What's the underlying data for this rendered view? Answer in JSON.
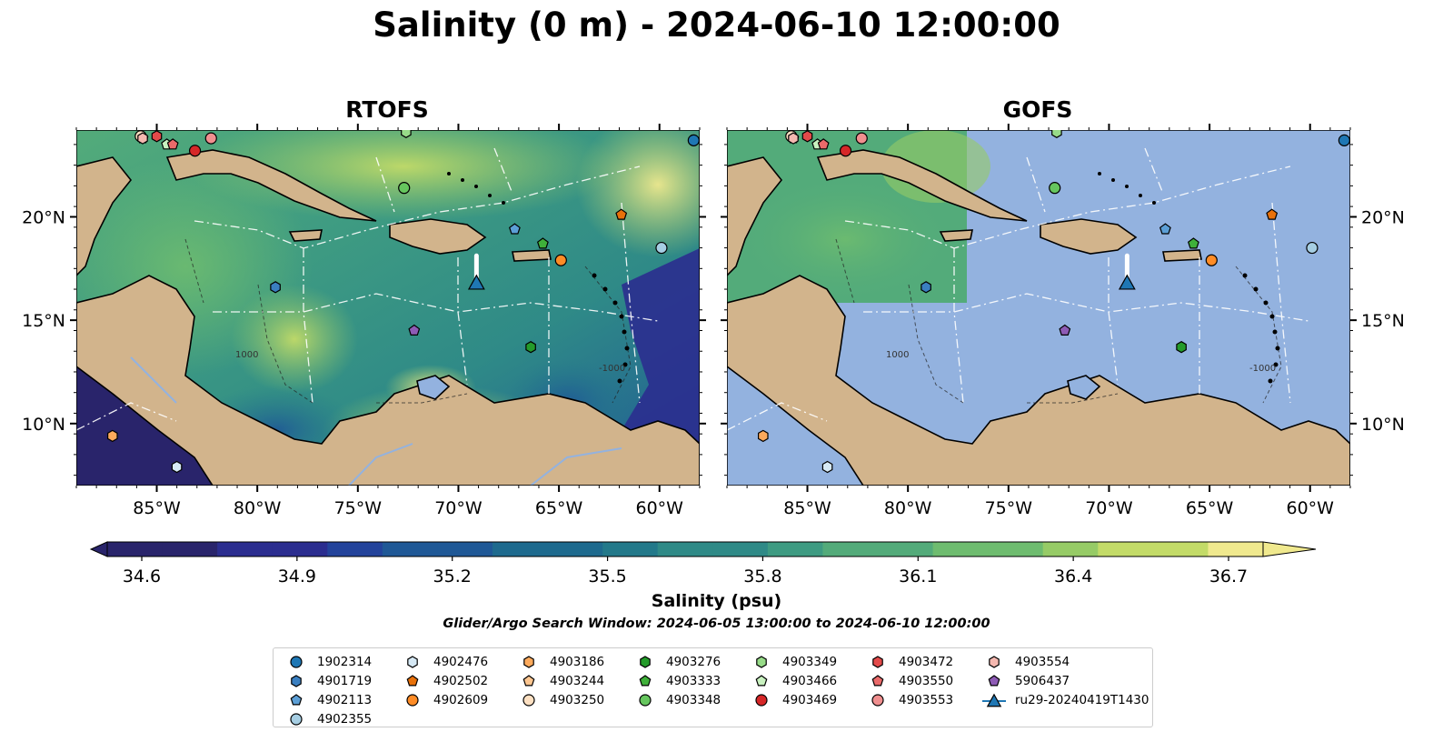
{
  "title": "Salinity (0 m) - 2024-06-10 12:00:00",
  "panels": [
    {
      "title": "RTOFS"
    },
    {
      "title": "GOFS"
    }
  ],
  "colors": {
    "land": "#d2b48c",
    "gofs_ocean": "#93b2df",
    "lakes": "#93b2df",
    "colormap": [
      "#29246b",
      "#2b2d8f",
      "#23439b",
      "#1f5896",
      "#1e6a8e",
      "#23798a",
      "#2f8a87",
      "#3e9b82",
      "#53ab7a",
      "#6ebc6f",
      "#96cb66",
      "#c3db68",
      "#f0e98e"
    ]
  },
  "map": {
    "lon_range": [
      -89,
      -58
    ],
    "lat_range": [
      7,
      24.2
    ],
    "x_ticks": [
      "85°W",
      "80°W",
      "75°W",
      "70°W",
      "65°W",
      "60°W"
    ],
    "y_ticks": [
      "20°N",
      "15°N",
      "10°N"
    ],
    "contour_labels": [
      "1000",
      "-1000"
    ]
  },
  "colorbar": {
    "label": "Salinity (psu)",
    "min": 34.6,
    "max": 36.7,
    "ticks": [
      "34.6",
      "34.9",
      "35.2",
      "35.5",
      "35.8",
      "36.1",
      "36.4",
      "36.7"
    ]
  },
  "search_window": "Glider/Argo Search Window: 2024-06-05 13:00:00 to 2024-06-10 12:00:00",
  "legend": [
    {
      "label": "1902314",
      "marker": "circle",
      "color": "#1f77b4"
    },
    {
      "label": "4901719",
      "marker": "hexagon",
      "color": "#3a7fc0"
    },
    {
      "label": "4902113",
      "marker": "pentagon",
      "color": "#5c9fd6"
    },
    {
      "label": "4902355",
      "marker": "circle",
      "color": "#a6cee3"
    },
    {
      "label": "4902476",
      "marker": "hexagon",
      "color": "#d6e9f5"
    },
    {
      "label": "4902502",
      "marker": "pentagon",
      "color": "#e8710a"
    },
    {
      "label": "4902609",
      "marker": "circle",
      "color": "#ff8c26"
    },
    {
      "label": "4903186",
      "marker": "hexagon",
      "color": "#fdaa5c"
    },
    {
      "label": "4903244",
      "marker": "pentagon",
      "color": "#fdc690"
    },
    {
      "label": "4903250",
      "marker": "circle",
      "color": "#fde0c2"
    },
    {
      "label": "4903276",
      "marker": "hexagon",
      "color": "#249b2a"
    },
    {
      "label": "4903333",
      "marker": "pentagon",
      "color": "#3fb03a"
    },
    {
      "label": "4903348",
      "marker": "circle",
      "color": "#66c65e"
    },
    {
      "label": "4903349",
      "marker": "hexagon",
      "color": "#97db88"
    },
    {
      "label": "4903466",
      "marker": "pentagon",
      "color": "#c9f2c0"
    },
    {
      "label": "4903469",
      "marker": "circle",
      "color": "#d62728"
    },
    {
      "label": "4903472",
      "marker": "hexagon",
      "color": "#e34a4a"
    },
    {
      "label": "4903550",
      "marker": "pentagon",
      "color": "#ea6a6a"
    },
    {
      "label": "4903553",
      "marker": "circle",
      "color": "#f08f8f"
    },
    {
      "label": "4903554",
      "marker": "hexagon",
      "color": "#f5b8b0"
    },
    {
      "label": "5906437",
      "marker": "pentagon",
      "color": "#8e5bb5"
    },
    {
      "label": "ru29-20240419T1430",
      "marker": "triangle-line",
      "color": "#1f77b4"
    }
  ],
  "observations": [
    {
      "id": "1902314",
      "lon": -58.3,
      "lat": 23.7
    },
    {
      "id": "4901719",
      "lon": -79.1,
      "lat": 16.6
    },
    {
      "id": "4902113",
      "lon": -67.2,
      "lat": 19.4
    },
    {
      "id": "4902355",
      "lon": -59.9,
      "lat": 18.5
    },
    {
      "id": "4902476",
      "lon": -84.0,
      "lat": 7.9
    },
    {
      "id": "4902502",
      "lon": -61.9,
      "lat": 20.1
    },
    {
      "id": "4902609",
      "lon": -64.9,
      "lat": 17.9
    },
    {
      "id": "4903186",
      "lon": -87.2,
      "lat": 9.4
    },
    {
      "id": "4903244",
      "lon": -85.7,
      "lat": 23.8
    },
    {
      "id": "4903250",
      "lon": -85.8,
      "lat": 23.9
    },
    {
      "id": "4903276",
      "lon": -66.4,
      "lat": 13.7
    },
    {
      "id": "4903333",
      "lon": -65.8,
      "lat": 18.7
    },
    {
      "id": "4903348",
      "lon": -72.7,
      "lat": 21.4
    },
    {
      "id": "4903349",
      "lon": -72.6,
      "lat": 24.1
    },
    {
      "id": "4903466",
      "lon": -84.5,
      "lat": 23.5
    },
    {
      "id": "4903469",
      "lon": -83.1,
      "lat": 23.2
    },
    {
      "id": "4903472",
      "lon": -85.0,
      "lat": 23.9
    },
    {
      "id": "4903550",
      "lon": -84.2,
      "lat": 23.5
    },
    {
      "id": "4903553",
      "lon": -82.3,
      "lat": 23.8
    },
    {
      "id": "4903554",
      "lon": -85.7,
      "lat": 23.8
    },
    {
      "id": "5906437",
      "lon": -72.2,
      "lat": 14.5
    },
    {
      "id": "ru29-20240419T1430",
      "lon": -69.1,
      "lat": 16.8
    }
  ]
}
